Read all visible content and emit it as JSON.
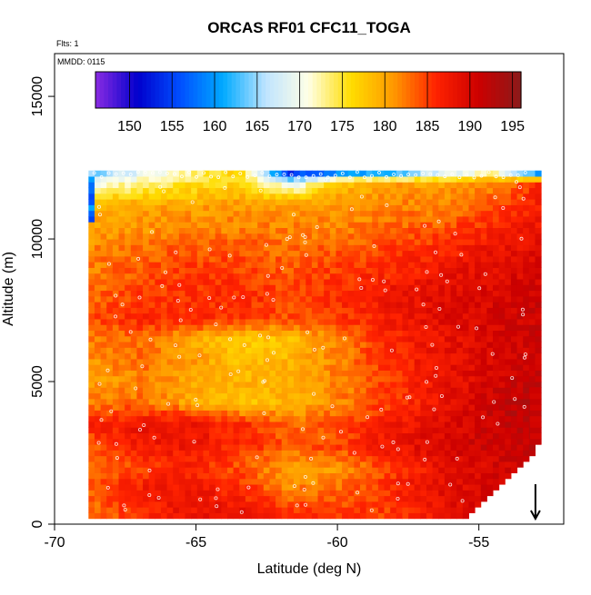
{
  "chart_data": {
    "type": "heatmap",
    "title": "ORCAS RF01 CFC11_TOGA",
    "annotations": [
      "Flts: 1",
      "MMDD: 0115"
    ],
    "xlabel": "Latitude (deg N)",
    "ylabel": "Altitude (m)",
    "xlim": [
      -70,
      -52
    ],
    "ylim": [
      0,
      16500
    ],
    "x_ticks": [
      -70,
      -65,
      -60,
      -55
    ],
    "x_tick_labels": [
      "-70",
      "-65",
      "-60",
      "-55"
    ],
    "y_ticks": [
      0,
      5000,
      10000,
      15000
    ],
    "y_tick_labels": [
      "0",
      "5000",
      "10000",
      "15000"
    ],
    "colorbar": {
      "min": 146,
      "max": 196,
      "ticks": [
        150,
        155,
        160,
        165,
        170,
        175,
        180,
        185,
        190,
        195
      ],
      "tick_labels": [
        "150",
        "155",
        "160",
        "165",
        "170",
        "175",
        "180",
        "185",
        "190",
        "195"
      ],
      "colors": [
        "#8a2be2",
        "#0000cd",
        "#0050ff",
        "#00aaff",
        "#bfe4ff",
        "#ffffe6",
        "#ffdd00",
        "#ff9900",
        "#ff2200",
        "#cc0000",
        "#8b1a1a"
      ]
    },
    "marker": {
      "label": "arrow",
      "x": -53,
      "y": 700
    },
    "profile": {
      "lat_min": -68.8,
      "lat_max": -52.8,
      "alt_min": 200,
      "top_left_alt": 12300,
      "top_right_alt": 12500,
      "right_edge_lat": [
        -53.2,
        -52.8
      ],
      "left_low_value": 158,
      "left_low_alt": [
        10500,
        12200
      ]
    },
    "layers": [
      {
        "alt": 400,
        "values": [
          182,
          186,
          188,
          188,
          186,
          185,
          185,
          188,
          190,
          191
        ]
      },
      {
        "alt": 1200,
        "values": [
          184,
          187,
          188,
          186,
          182,
          183,
          186,
          189,
          190,
          191
        ]
      },
      {
        "alt": 2000,
        "values": [
          182,
          185,
          186,
          184,
          180,
          181,
          185,
          188,
          190,
          191
        ]
      },
      {
        "alt": 2800,
        "values": [
          184,
          187,
          188,
          186,
          184,
          185,
          188,
          190,
          191,
          192
        ]
      },
      {
        "alt": 3500,
        "values": [
          186,
          188,
          188,
          186,
          183,
          184,
          187,
          189,
          191,
          193
        ]
      },
      {
        "alt": 4300,
        "values": [
          182,
          183,
          180,
          178,
          179,
          182,
          185,
          188,
          191,
          193
        ]
      },
      {
        "alt": 5000,
        "values": [
          180,
          182,
          180,
          179,
          180,
          182,
          185,
          188,
          190,
          192
        ]
      },
      {
        "alt": 5800,
        "values": [
          181,
          183,
          181,
          178,
          179,
          182,
          186,
          188,
          190,
          191
        ]
      },
      {
        "alt": 6500,
        "values": [
          182,
          183,
          180,
          177,
          178,
          182,
          186,
          188,
          190,
          191
        ]
      },
      {
        "alt": 7200,
        "values": [
          184,
          186,
          186,
          185,
          184,
          185,
          187,
          189,
          190,
          191
        ]
      },
      {
        "alt": 8000,
        "values": [
          183,
          185,
          186,
          186,
          185,
          186,
          188,
          189,
          190,
          191
        ]
      },
      {
        "alt": 8800,
        "values": [
          182,
          184,
          185,
          185,
          184,
          185,
          186,
          188,
          189,
          190
        ]
      },
      {
        "alt": 9600,
        "values": [
          182,
          183,
          184,
          184,
          183,
          184,
          185,
          186,
          188,
          189
        ]
      },
      {
        "alt": 10400,
        "values": [
          180,
          181,
          182,
          182,
          182,
          182,
          183,
          184,
          186,
          188
        ]
      },
      {
        "alt": 11200,
        "values": [
          179,
          180,
          180,
          181,
          181,
          181,
          182,
          182,
          184,
          187
        ]
      },
      {
        "alt": 12000,
        "values": [
          170,
          172,
          175,
          176,
          168,
          178,
          180,
          180,
          181,
          186
        ]
      },
      {
        "alt": 12400,
        "values": [
          162,
          168,
          172,
          178,
          150,
          154,
          156,
          164,
          170,
          152
        ]
      }
    ]
  }
}
